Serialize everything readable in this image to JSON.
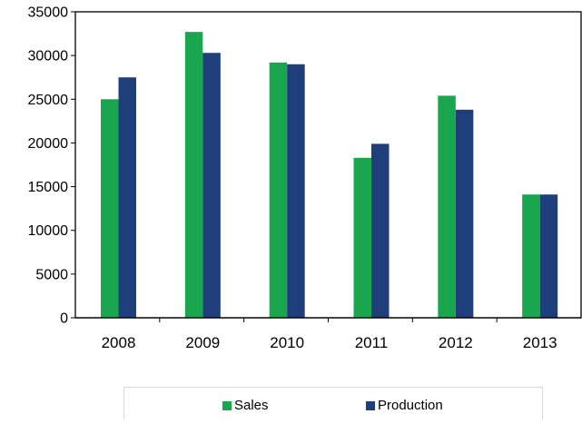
{
  "chart_data": {
    "type": "bar",
    "title": "",
    "xlabel": "",
    "ylabel": "",
    "categories": [
      "2008",
      "2009",
      "2010",
      "2011",
      "2012",
      "2013"
    ],
    "series": [
      {
        "name": "Sales",
        "color": "#1aa64f",
        "values": [
          25000,
          32700,
          29200,
          18300,
          25400,
          14100
        ]
      },
      {
        "name": "Production",
        "color": "#1f3e7c",
        "values": [
          27500,
          30300,
          29000,
          19900,
          23800,
          14100
        ]
      }
    ],
    "ylim": [
      0,
      35000
    ],
    "yticks": [
      "0",
      "5000",
      "10000",
      "15000",
      "20000",
      "25000",
      "30000",
      "35000"
    ],
    "grid": false,
    "legend_position": "bottom"
  }
}
